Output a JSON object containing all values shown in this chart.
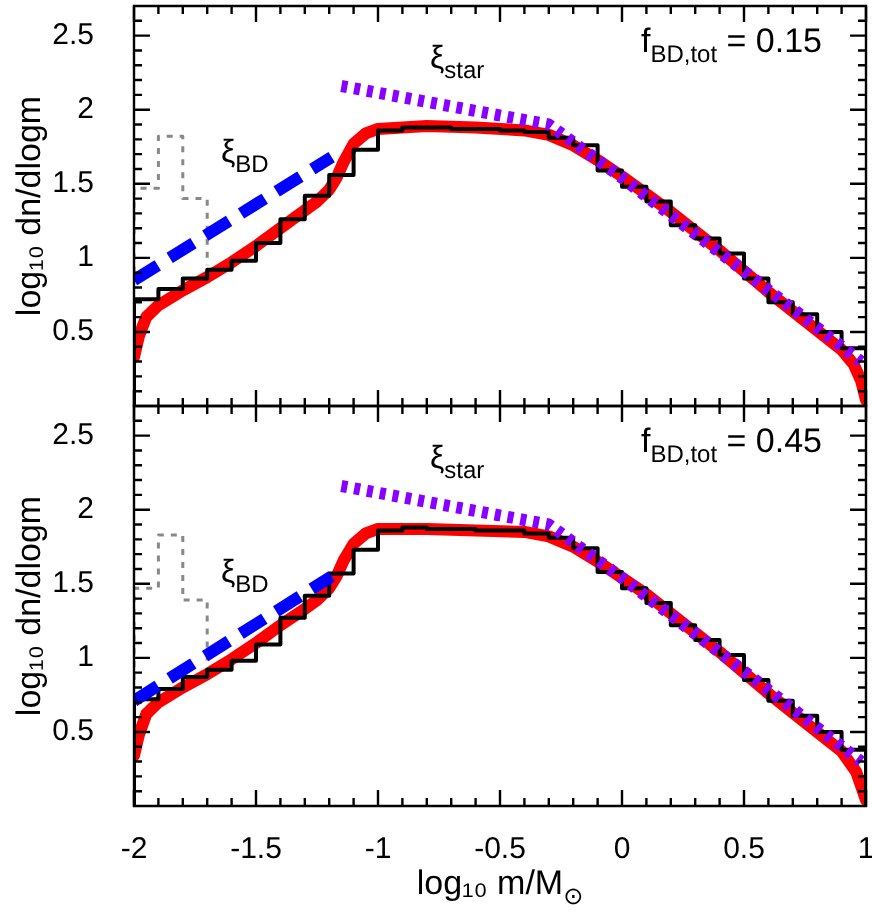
{
  "chart_data": [
    {
      "type": "line",
      "ylabel": "log₁₀ dn/dlogm",
      "annotations": [
        "f$_{BD,tot}$ = 0.15"
      ],
      "tick_labels": "y",
      "xlim": [
        -2,
        1
      ],
      "ylim": [
        0,
        2.7
      ],
      "xticks": [
        -2,
        {
          "value": -1.9,
          "label": null
        },
        {
          "value": -1.8,
          "label": null
        },
        {
          "value": -1.7,
          "label": null
        },
        {
          "value": -1.6,
          "label": null
        },
        -1.5,
        {
          "value": -1.4,
          "label": null
        },
        {
          "value": -1.3,
          "label": null
        },
        {
          "value": -1.2,
          "label": null
        },
        {
          "value": -1.1,
          "label": null
        },
        -1,
        {
          "value": -0.9,
          "label": null
        },
        {
          "value": -0.8,
          "label": null
        },
        {
          "value": -0.7,
          "label": null
        },
        {
          "value": -0.6,
          "label": null
        },
        -0.5,
        {
          "value": -0.4,
          "label": null
        },
        {
          "value": -0.3,
          "label": null
        },
        {
          "value": -0.2,
          "label": null
        },
        {
          "value": -0.1,
          "label": null
        },
        0,
        {
          "value": 0.1,
          "label": null
        },
        {
          "value": 0.2,
          "label": null
        },
        {
          "value": 0.3,
          "label": null
        },
        {
          "value": 0.4,
          "label": null
        },
        0.5,
        {
          "value": 0.6,
          "label": null
        },
        {
          "value": 0.7,
          "label": null
        },
        {
          "value": 0.8,
          "label": null
        },
        {
          "value": 0.9,
          "label": null
        },
        1
      ],
      "yticks": [
        {
          "value": 0.1,
          "label": null
        },
        {
          "value": 0.2,
          "label": null
        },
        {
          "value": 0.3,
          "label": null
        },
        {
          "value": 0.4,
          "label": null
        },
        0.5,
        {
          "value": 0.6,
          "label": null
        },
        {
          "value": 0.7,
          "label": null
        },
        {
          "value": 0.8,
          "label": null
        },
        {
          "value": 0.9,
          "label": null
        },
        1,
        {
          "value": 1.1,
          "label": null
        },
        {
          "value": 1.2,
          "label": null
        },
        {
          "value": 1.3,
          "label": null
        },
        {
          "value": 1.4,
          "label": null
        },
        1.5,
        {
          "value": 1.6,
          "label": null
        },
        {
          "value": 1.7,
          "label": null
        },
        {
          "value": 1.8,
          "label": null
        },
        {
          "value": 1.9,
          "label": null
        },
        2,
        {
          "value": 2.1,
          "label": null
        },
        {
          "value": 2.2,
          "label": null
        },
        {
          "value": 2.3,
          "label": null
        },
        {
          "value": 2.4,
          "label": null
        },
        2.5,
        {
          "value": 2.6,
          "label": null
        }
      ],
      "series": [
        {
          "type": "step",
          "color": "#888888",
          "line_style": "dotted",
          "x": [
            -2,
            -2,
            -1.9,
            -1.8,
            -1.7
          ],
          "values": [
            0.9,
            1.47,
            1.82,
            1.4,
            0.95
          ]
        },
        {
          "type": "line",
          "color": "#ff0000",
          "x": [
            -2,
            -1.98,
            -1.95,
            -1.9,
            -1.8,
            -1.7,
            -1.6,
            -1.5,
            -1.4,
            -1.3,
            -1.25,
            -1.2,
            -1.17,
            -1.14,
            -1.1,
            -1.05,
            -1,
            -0.8,
            -0.6,
            -0.4,
            -0.3,
            -0.2,
            -0.1,
            0,
            0.1,
            0.2,
            0.3,
            0.4,
            0.5,
            0.6,
            0.7,
            0.8,
            0.9,
            0.95,
            0.98,
            1
          ],
          "values": [
            0.33,
            0.47,
            0.6,
            0.68,
            0.78,
            0.87,
            0.97,
            1.08,
            1.2,
            1.32,
            1.38,
            1.46,
            1.54,
            1.65,
            1.77,
            1.84,
            1.87,
            1.89,
            1.88,
            1.86,
            1.83,
            1.76,
            1.66,
            1.55,
            1.43,
            1.31,
            1.18,
            1.05,
            0.91,
            0.77,
            0.64,
            0.51,
            0.38,
            0.28,
            0.17,
            0.04
          ]
        },
        {
          "type": "histogram",
          "color": "#000000",
          "bins": [
            -2,
            -1.9,
            -1.8,
            -1.7,
            -1.6,
            -1.5,
            -1.4,
            -1.3,
            -1.2,
            -1.1,
            -1,
            -0.9,
            -0.8,
            -0.7,
            -0.6,
            -0.5,
            -0.4,
            -0.3,
            -0.2,
            -0.1,
            0,
            0.1,
            0.2,
            0.3,
            0.4,
            0.5,
            0.6,
            0.7,
            0.8,
            0.9,
            1
          ],
          "values": [
            0.72,
            0.79,
            0.86,
            0.92,
            0.98,
            1.1,
            1.26,
            1.42,
            1.56,
            1.73,
            1.86,
            1.88,
            1.88,
            1.87,
            1.87,
            1.86,
            1.85,
            1.81,
            1.76,
            1.59,
            1.48,
            1.38,
            1.22,
            1.13,
            1.03,
            0.86,
            0.7,
            0.62,
            0.5,
            0.39
          ]
        },
        {
          "type": "line",
          "name": "ξ$_{BD}$",
          "color": "#0000ff",
          "line_style": "dashed",
          "x": [
            -2,
            -1.19
          ],
          "values": [
            0.85,
            1.68
          ]
        },
        {
          "type": "line",
          "name": "ξ$_{star}$",
          "color": "#8800ff",
          "line_style": "dotted",
          "x": [
            -1.15,
            -0.3,
            0,
            0.5,
            0.98
          ],
          "values": [
            2.16,
            1.9,
            1.54,
            0.91,
            0.3
          ]
        }
      ]
    },
    {
      "type": "line",
      "ylabel": "log₁₀ dn/dlogm",
      "xlabel": "log₁₀ m/M$_{⊙}$",
      "annotations": [
        "f$_{BD,tot}$ = 0.45"
      ],
      "xlim": [
        -2,
        1
      ],
      "ylim": [
        0,
        2.7
      ],
      "xticks": [
        -2,
        {
          "value": -1.9,
          "label": null
        },
        {
          "value": -1.8,
          "label": null
        },
        {
          "value": -1.7,
          "label": null
        },
        {
          "value": -1.6,
          "label": null
        },
        -1.5,
        {
          "value": -1.4,
          "label": null
        },
        {
          "value": -1.3,
          "label": null
        },
        {
          "value": -1.2,
          "label": null
        },
        {
          "value": -1.1,
          "label": null
        },
        -1,
        {
          "value": -0.9,
          "label": null
        },
        {
          "value": -0.8,
          "label": null
        },
        {
          "value": -0.7,
          "label": null
        },
        {
          "value": -0.6,
          "label": null
        },
        -0.5,
        {
          "value": -0.4,
          "label": null
        },
        {
          "value": -0.3,
          "label": null
        },
        {
          "value": -0.2,
          "label": null
        },
        {
          "value": -0.1,
          "label": null
        },
        0,
        {
          "value": 0.1,
          "label": null
        },
        {
          "value": 0.2,
          "label": null
        },
        {
          "value": 0.3,
          "label": null
        },
        {
          "value": 0.4,
          "label": null
        },
        0.5,
        {
          "value": 0.6,
          "label": null
        },
        {
          "value": 0.7,
          "label": null
        },
        {
          "value": 0.8,
          "label": null
        },
        {
          "value": 0.9,
          "label": null
        },
        1
      ],
      "yticks": [
        {
          "value": 0.1,
          "label": null
        },
        {
          "value": 0.2,
          "label": null
        },
        {
          "value": 0.3,
          "label": null
        },
        {
          "value": 0.4,
          "label": null
        },
        0.5,
        {
          "value": 0.6,
          "label": null
        },
        {
          "value": 0.7,
          "label": null
        },
        {
          "value": 0.8,
          "label": null
        },
        {
          "value": 0.9,
          "label": null
        },
        1,
        {
          "value": 1.1,
          "label": null
        },
        {
          "value": 1.2,
          "label": null
        },
        {
          "value": 1.3,
          "label": null
        },
        {
          "value": 1.4,
          "label": null
        },
        1.5,
        {
          "value": 1.6,
          "label": null
        },
        {
          "value": 1.7,
          "label": null
        },
        {
          "value": 1.8,
          "label": null
        },
        {
          "value": 1.9,
          "label": null
        },
        2,
        {
          "value": 2.1,
          "label": null
        },
        {
          "value": 2.2,
          "label": null
        },
        {
          "value": 2.3,
          "label": null
        },
        {
          "value": 2.4,
          "label": null
        },
        2.5,
        {
          "value": 2.6,
          "label": null
        }
      ],
      "series": [
        {
          "type": "step",
          "color": "#888888",
          "line_style": "dotted",
          "x": [
            -2,
            -2,
            -1.9,
            -1.8,
            -1.7
          ],
          "values": [
            0.85,
            1.47,
            1.83,
            1.39,
            0.95
          ]
        },
        {
          "type": "line",
          "color": "#ff0000",
          "x": [
            -2,
            -1.98,
            -1.95,
            -1.9,
            -1.8,
            -1.7,
            -1.6,
            -1.5,
            -1.4,
            -1.3,
            -1.25,
            -1.2,
            -1.17,
            -1.14,
            -1.1,
            -1.05,
            -1,
            -0.8,
            -0.6,
            -0.4,
            -0.3,
            -0.2,
            -0.1,
            0,
            0.1,
            0.2,
            0.3,
            0.4,
            0.5,
            0.6,
            0.7,
            0.8,
            0.9,
            0.96,
            1
          ],
          "values": [
            0.34,
            0.48,
            0.62,
            0.7,
            0.8,
            0.89,
            0.99,
            1.1,
            1.22,
            1.33,
            1.39,
            1.47,
            1.55,
            1.66,
            1.77,
            1.84,
            1.87,
            1.87,
            1.86,
            1.85,
            1.82,
            1.75,
            1.65,
            1.54,
            1.43,
            1.3,
            1.17,
            1.04,
            0.9,
            0.76,
            0.63,
            0.5,
            0.37,
            0.23,
            0.04
          ]
        },
        {
          "type": "histogram",
          "color": "#000000",
          "bins": [
            -2,
            -1.9,
            -1.8,
            -1.7,
            -1.6,
            -1.5,
            -1.4,
            -1.3,
            -1.2,
            -1.1,
            -1,
            -0.9,
            -0.8,
            -0.7,
            -0.6,
            -0.5,
            -0.4,
            -0.3,
            -0.2,
            -0.1,
            0,
            0.1,
            0.2,
            0.3,
            0.4,
            0.5,
            0.6,
            0.7,
            0.8,
            0.9,
            1
          ],
          "values": [
            0.72,
            0.79,
            0.87,
            0.92,
            0.98,
            1.09,
            1.27,
            1.42,
            1.57,
            1.73,
            1.86,
            1.88,
            1.87,
            1.87,
            1.86,
            1.86,
            1.84,
            1.81,
            1.74,
            1.58,
            1.47,
            1.37,
            1.22,
            1.12,
            1.02,
            0.85,
            0.71,
            0.61,
            0.5,
            0.38
          ]
        },
        {
          "type": "line",
          "name": "ξ$_{BD}$",
          "color": "#0000ff",
          "line_style": "dashed",
          "x": [
            -2,
            -1.19
          ],
          "values": [
            0.71,
            1.55
          ]
        },
        {
          "type": "line",
          "name": "ξ$_{star}$",
          "color": "#8800ff",
          "line_style": "dotted",
          "x": [
            -1.15,
            -0.3,
            0,
            0.5,
            0.98
          ],
          "values": [
            2.16,
            1.9,
            1.54,
            0.91,
            0.3
          ]
        }
      ]
    }
  ]
}
